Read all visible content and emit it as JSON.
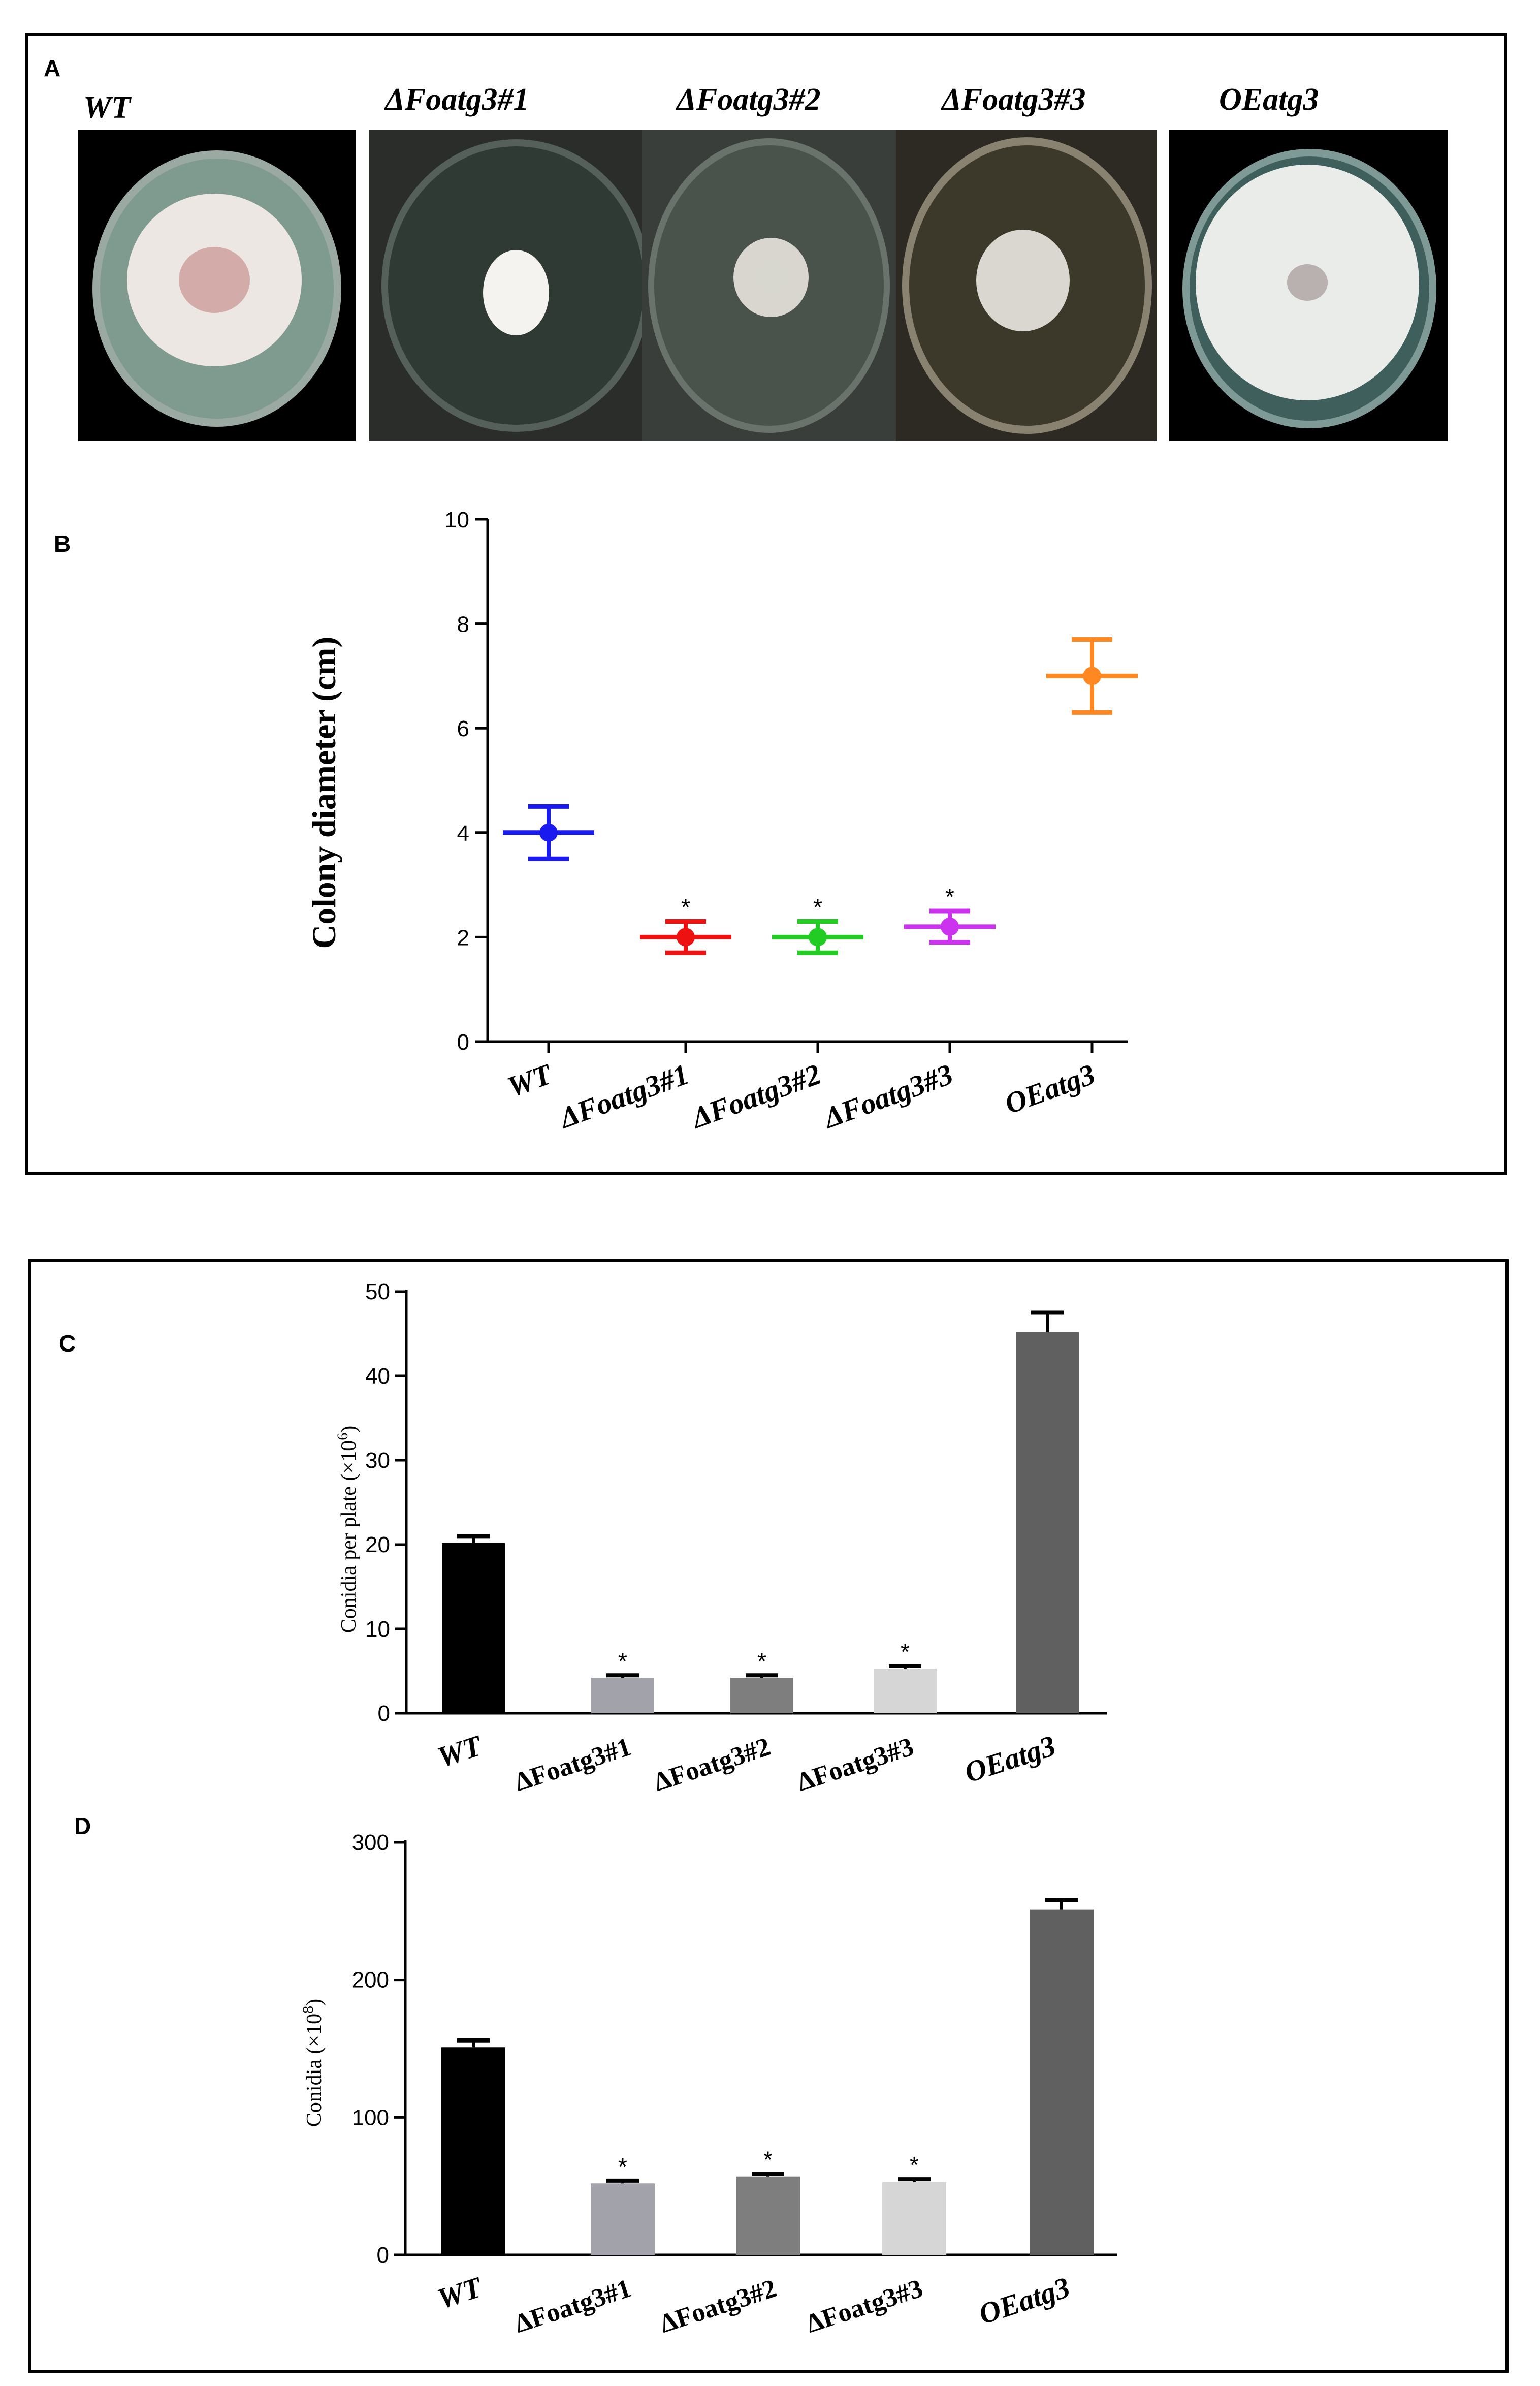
{
  "panels": {
    "a": {
      "letter": "A"
    },
    "b": {
      "letter": "B"
    },
    "c": {
      "letter": "C"
    },
    "d": {
      "letter": "D"
    }
  },
  "plates": [
    {
      "label": "WT",
      "bg": "#000000",
      "agar": "#7f9a8f",
      "colony": "#ece7e3",
      "center": "#c07a78"
    },
    {
      "label": "ΔFoatg3#1",
      "bg": "#2a2d2a",
      "agar": "#2f3a34",
      "colony": "#f4f3ef",
      "center": "#f4f3ef"
    },
    {
      "label": "ΔFoatg3#2",
      "bg": "#3a3e3a",
      "agar": "#4a524c",
      "colony": "#d8d6cf",
      "center": "#d8d6cf"
    },
    {
      "label": "ΔFoatg3#3",
      "bg": "#2c2a22",
      "agar": "#3c382a",
      "colony": "#d9d7d0",
      "center": "#d9d7d0"
    },
    {
      "label": "OEatg3",
      "bg": "#000000",
      "agar": "#3f5f5c",
      "colony": "#e9ece8",
      "center": "#9a8a88"
    }
  ],
  "chart_data": [
    {
      "id": "B",
      "type": "scatter",
      "title": "",
      "ylabel": "Colony diameter (cm)",
      "ylim": [
        0,
        10
      ],
      "yticks": [
        0,
        2,
        4,
        6,
        8,
        10
      ],
      "categories": [
        "WT",
        "ΔFoatg3#1",
        "ΔFoatg3#2",
        "ΔFoatg3#3",
        "OEatg3"
      ],
      "values": [
        4.0,
        2.0,
        2.0,
        2.2,
        7.0
      ],
      "error": [
        0.5,
        0.3,
        0.3,
        0.3,
        0.7
      ],
      "significance": [
        "",
        "*",
        "*",
        "*",
        ""
      ],
      "colors": [
        "#1a1aee",
        "#ee1111",
        "#22cc22",
        "#cc33ee",
        "#ff8822"
      ]
    },
    {
      "id": "C",
      "type": "bar",
      "ylabel": "Conidia per plate (×10",
      "ylabel_exp": "6",
      "ylabel_end": ")",
      "ylim": [
        0,
        50
      ],
      "yticks": [
        0,
        10,
        20,
        30,
        40,
        50
      ],
      "categories": [
        "WT",
        "ΔFoatg3#1",
        "ΔFoatg3#2",
        "ΔFoatg3#3",
        "OEatg3"
      ],
      "values": [
        20.2,
        4.2,
        4.2,
        5.3,
        45.2
      ],
      "error": [
        0.8,
        0.3,
        0.3,
        0.3,
        2.3
      ],
      "significance": [
        "",
        "*",
        "*",
        "*",
        ""
      ],
      "colors": [
        "#000000",
        "#a2a2aa",
        "#7e7e7e",
        "#d6d6d6",
        "#606060"
      ]
    },
    {
      "id": "D",
      "type": "bar",
      "ylabel": "Conidia  (×10",
      "ylabel_exp": "8",
      "ylabel_end": ")",
      "ylim": [
        0,
        300
      ],
      "yticks": [
        0,
        100,
        200,
        300
      ],
      "categories": [
        "WT",
        "ΔFoatg3#1",
        "ΔFoatg3#2",
        "ΔFoatg3#3",
        "OEatg3"
      ],
      "values": [
        151,
        52,
        57,
        53,
        251
      ],
      "error": [
        5,
        2,
        2,
        2,
        7
      ],
      "significance": [
        "",
        "*",
        "*",
        "*",
        ""
      ],
      "colors": [
        "#000000",
        "#a2a2aa",
        "#7e7e7e",
        "#d6d6d6",
        "#606060"
      ]
    }
  ]
}
